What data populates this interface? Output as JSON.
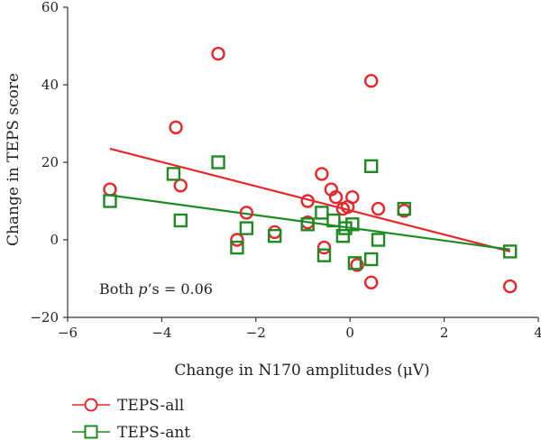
{
  "chart_data": {
    "type": "scatter",
    "xlabel": "Change in N170 amplitudes (μV)",
    "ylabel": "Change in TEPS score",
    "xlim": [
      -6,
      4
    ],
    "ylim": [
      -20,
      60
    ],
    "xticks": [
      -6,
      -4,
      -2,
      0,
      2,
      4
    ],
    "yticks": [
      -20,
      0,
      20,
      40,
      60
    ],
    "xtick_labels": [
      "−6",
      "−4",
      "−2",
      "0",
      "2",
      "4"
    ],
    "ytick_labels": [
      "−20",
      "0",
      "20",
      "40",
      "60"
    ],
    "grid": false,
    "legend_position": "bottom-left, below plot",
    "annotation": {
      "prefix": "Both ",
      "italic": "p",
      "suffix": "’s = 0.06"
    },
    "series": [
      {
        "name": "TEPS-all",
        "marker": "circle",
        "color": "#e8262a",
        "points": [
          [
            -5.1,
            13
          ],
          [
            -3.7,
            29
          ],
          [
            -3.6,
            14
          ],
          [
            -2.8,
            48
          ],
          [
            -2.4,
            0
          ],
          [
            -2.2,
            7
          ],
          [
            -1.6,
            2
          ],
          [
            -0.9,
            10
          ],
          [
            -0.9,
            4.5
          ],
          [
            -0.6,
            17
          ],
          [
            -0.55,
            -2
          ],
          [
            -0.4,
            13
          ],
          [
            -0.3,
            11
          ],
          [
            -0.15,
            8
          ],
          [
            -0.05,
            8.5
          ],
          [
            0.05,
            11
          ],
          [
            0.15,
            -6.5
          ],
          [
            0.45,
            41
          ],
          [
            0.45,
            -11
          ],
          [
            0.6,
            8
          ],
          [
            1.15,
            7.5
          ],
          [
            3.4,
            -12
          ]
        ],
        "fit": [
          [
            -5.1,
            23.5
          ],
          [
            3.4,
            -3
          ]
        ]
      },
      {
        "name": "TEPS-ant",
        "marker": "square",
        "color": "#1e8a22",
        "points": [
          [
            -5.1,
            10
          ],
          [
            -3.75,
            17
          ],
          [
            -3.6,
            5
          ],
          [
            -2.8,
            20
          ],
          [
            -2.4,
            -2
          ],
          [
            -2.2,
            3
          ],
          [
            -1.6,
            1
          ],
          [
            -0.9,
            4
          ],
          [
            -0.6,
            7
          ],
          [
            -0.55,
            -4
          ],
          [
            -0.35,
            5
          ],
          [
            -0.15,
            1
          ],
          [
            -0.1,
            3
          ],
          [
            0.05,
            4
          ],
          [
            0.1,
            -6
          ],
          [
            0.45,
            19
          ],
          [
            0.45,
            -5
          ],
          [
            0.6,
            0
          ],
          [
            1.15,
            8
          ],
          [
            3.4,
            -3
          ]
        ],
        "fit": [
          [
            -5.1,
            11.5
          ],
          [
            3.4,
            -2.5
          ]
        ]
      }
    ]
  }
}
